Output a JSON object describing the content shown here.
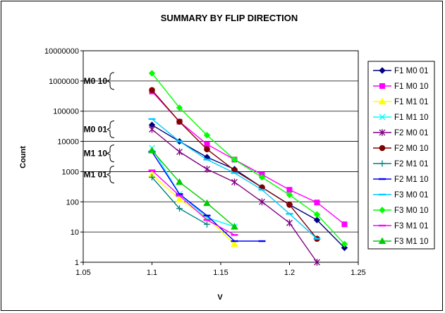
{
  "chart_data": {
    "type": "line",
    "title": "SUMMARY BY FLIP DIRECTION",
    "xlabel": "V",
    "ylabel": "Count",
    "xlim": [
      1.05,
      1.25
    ],
    "ylim": [
      1,
      10000000
    ],
    "y_scale": "log",
    "x_ticks": [
      "1.05",
      "1.1",
      "1.15",
      "1.2",
      "1.25"
    ],
    "y_ticks": [
      "1",
      "10",
      "100",
      "1000",
      "10000",
      "100000",
      "1000000",
      "10000000"
    ],
    "grid": true,
    "legend_position": "right",
    "annotations": [
      "M0 10",
      "M0 01",
      "M1 10",
      "M1 01"
    ],
    "series": [
      {
        "name": "F1 M0 01",
        "color": "#000080",
        "marker": "diamond",
        "x": [
          1.1,
          1.12,
          1.14,
          1.16,
          1.18,
          1.2,
          1.22,
          1.24
        ],
        "y": [
          35000,
          10000,
          3000,
          1200,
          300,
          80,
          25,
          3
        ]
      },
      {
        "name": "F1 M0 10",
        "color": "#ff00ff",
        "marker": "square",
        "x": [
          1.1,
          1.12,
          1.14,
          1.16,
          1.18,
          1.2,
          1.22,
          1.24
        ],
        "y": [
          450000,
          45000,
          8000,
          2500,
          800,
          250,
          95,
          18
        ]
      },
      {
        "name": "F1 M1 01",
        "color": "#ffff00",
        "marker": "triangle",
        "x": [
          1.1,
          1.12,
          1.14,
          1.16
        ],
        "y": [
          800,
          120,
          30,
          4
        ]
      },
      {
        "name": "F1 M1 10",
        "color": "#00ffff",
        "marker": "x",
        "x": [
          1.1,
          1.12,
          1.14,
          1.16
        ],
        "y": [
          6000,
          180,
          30,
          15
        ]
      },
      {
        "name": "F2 M0 01",
        "color": "#800080",
        "marker": "star",
        "x": [
          1.1,
          1.12,
          1.14,
          1.16,
          1.18,
          1.2,
          1.22
        ],
        "y": [
          25000,
          4500,
          1200,
          450,
          100,
          20,
          1
        ]
      },
      {
        "name": "F2 M0 10",
        "color": "#800000",
        "marker": "circle",
        "x": [
          1.1,
          1.12,
          1.14,
          1.16,
          1.18,
          1.2,
          1.22
        ],
        "y": [
          500000,
          45000,
          5500,
          1100,
          300,
          80,
          6
        ]
      },
      {
        "name": "F2 M1 01",
        "color": "#008080",
        "marker": "plus",
        "x": [
          1.1,
          1.12,
          1.14
        ],
        "y": [
          650,
          60,
          18
        ]
      },
      {
        "name": "F2 M1 10",
        "color": "#0000ff",
        "marker": "dash",
        "x": [
          1.1,
          1.12,
          1.14,
          1.16,
          1.18
        ],
        "y": [
          4500,
          180,
          35,
          5,
          5
        ]
      },
      {
        "name": "F3 M0 01",
        "color": "#00ccff",
        "marker": "dash",
        "x": [
          1.1,
          1.12,
          1.14,
          1.16,
          1.18,
          1.2,
          1.22
        ],
        "y": [
          55000,
          10000,
          2500,
          900,
          250,
          40,
          6
        ]
      },
      {
        "name": "F3 M0 10",
        "color": "#00ff00",
        "marker": "diamond",
        "x": [
          1.1,
          1.12,
          1.14,
          1.16,
          1.18,
          1.2,
          1.22,
          1.24
        ],
        "y": [
          1800000,
          130000,
          16000,
          2500,
          650,
          170,
          38,
          4
        ]
      },
      {
        "name": "F3 M1 01",
        "color": "#ff00ff",
        "marker": "dash",
        "x": [
          1.1,
          1.12,
          1.14,
          1.16
        ],
        "y": [
          1100,
          160,
          25,
          8
        ]
      },
      {
        "name": "F3 M1 10",
        "color": "#00cc00",
        "marker": "triangle",
        "x": [
          1.1,
          1.12,
          1.14,
          1.16
        ],
        "y": [
          5000,
          450,
          90,
          15
        ]
      }
    ]
  }
}
